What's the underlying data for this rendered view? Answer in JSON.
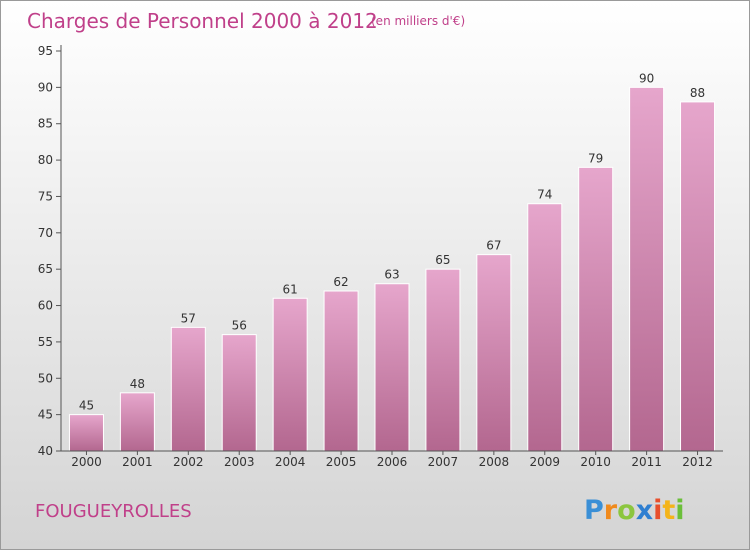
{
  "chart_data": {
    "type": "bar",
    "title": "Charges de Personnel 2000 à 2012",
    "subtitle": "(en milliers d'€)",
    "categories": [
      "2000",
      "2001",
      "2002",
      "2003",
      "2004",
      "2005",
      "2006",
      "2007",
      "2008",
      "2009",
      "2010",
      "2011",
      "2012"
    ],
    "values": [
      45,
      48,
      57,
      56,
      61,
      62,
      63,
      65,
      67,
      74,
      79,
      90,
      88
    ],
    "ylim": [
      40,
      95
    ],
    "yticks": [
      40,
      45,
      50,
      55,
      60,
      65,
      70,
      75,
      80,
      85,
      90,
      95
    ],
    "xlabel": "",
    "ylabel": "",
    "grid": false,
    "legend": "none",
    "bar_color": "#d98cbb"
  },
  "commune": "FOUGUEYROLLES",
  "logo": {
    "text": "Proxiti",
    "letters": [
      "P",
      "r",
      "o",
      "x",
      "i",
      "t",
      "i"
    ],
    "colors": [
      "#3a8fd6",
      "#f08a1c",
      "#8cc63f",
      "#2f7fd1",
      "#e84f2c",
      "#f4b41a",
      "#6bbf3a"
    ]
  }
}
